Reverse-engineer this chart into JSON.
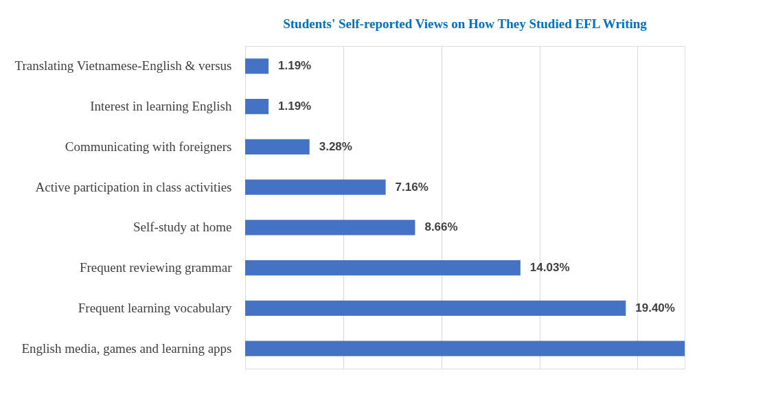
{
  "chart_data": {
    "type": "bar",
    "orientation": "horizontal",
    "title": "Students' Self-reported Views on How They Studied EFL Writing",
    "categories": [
      "Translating Vietnamese-English & versus",
      "Interest in learning English",
      "Communicating with foreigners",
      "Active participation in class activities",
      "Self-study at home",
      "Frequent reviewing grammar",
      "Frequent learning vocabulary",
      "English media, games and learning apps"
    ],
    "values": [
      1.19,
      1.19,
      3.28,
      7.16,
      8.66,
      14.03,
      19.4,
      22.4
    ],
    "value_labels": [
      "1.19%",
      "1.19%",
      "3.28%",
      "7.16%",
      "8.66%",
      "14.03%",
      "19.40%",
      null
    ],
    "color": "#4472c4",
    "xlim": [
      0,
      22.4
    ],
    "xticks": [
      {
        "value": 0,
        "label": null
      },
      {
        "value": 5,
        "label": null
      },
      {
        "value": 10,
        "label": null
      },
      {
        "value": 15,
        "label": null
      },
      {
        "value": 20,
        "label": null
      }
    ],
    "tick_labels": "y",
    "grid": "x"
  }
}
